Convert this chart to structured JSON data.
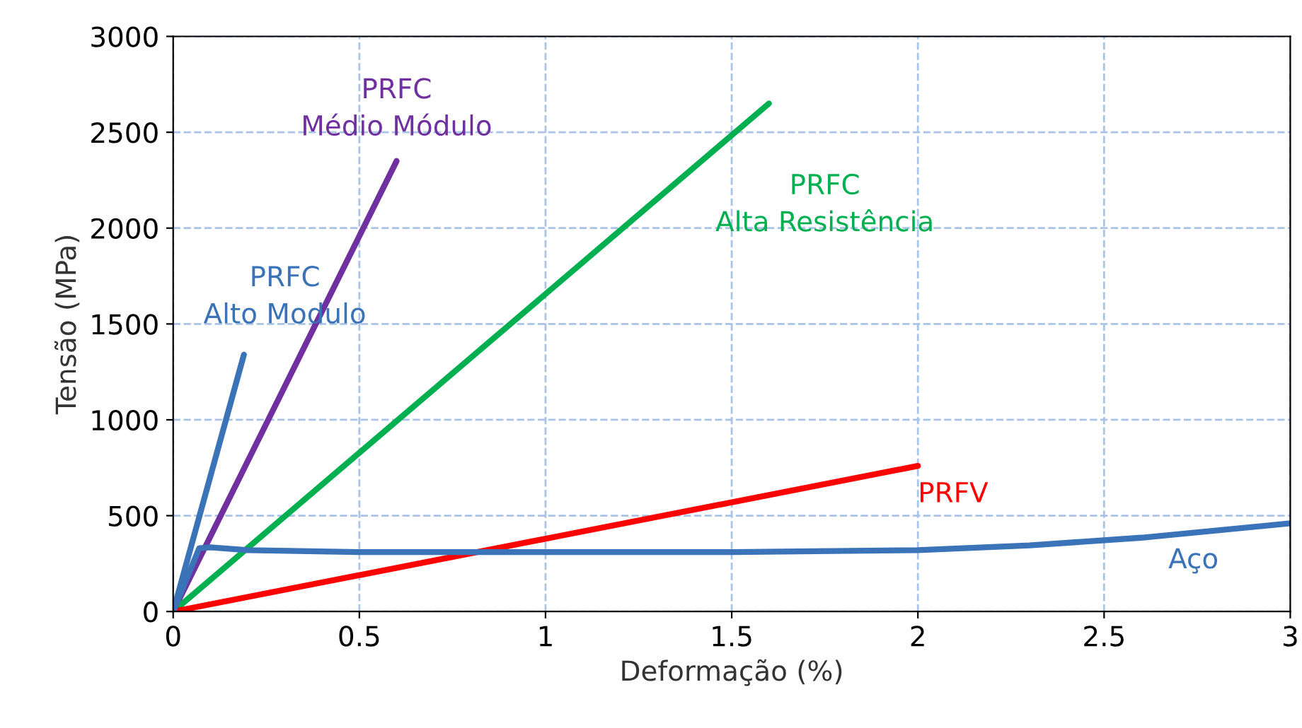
{
  "chart_data": {
    "type": "line",
    "xlabel": "Deformação (%)",
    "ylabel": "Tensão (MPa)",
    "xlim": [
      0,
      3
    ],
    "ylim": [
      0,
      3000
    ],
    "xticks": [
      0,
      0.5,
      1,
      1.5,
      2,
      2.5,
      3
    ],
    "yticks": [
      0,
      500,
      1000,
      1500,
      2000,
      2500,
      3000
    ],
    "grid": true,
    "legend": false,
    "marker": "none",
    "line_style": "solid",
    "series": [
      {
        "name": "PRFC\nAlto Modulo",
        "color": "#3a73b8",
        "x": [
          0,
          0.19
        ],
        "values": [
          0,
          1340
        ]
      },
      {
        "name": "PRFC\nMédio Módulo",
        "color": "#7030a0",
        "x": [
          0,
          0.6
        ],
        "values": [
          0,
          2350
        ]
      },
      {
        "name": "PRFC\nAlta Resistência",
        "color": "#00b050",
        "x": [
          0,
          1.6
        ],
        "values": [
          0,
          2650
        ]
      },
      {
        "name": "PRFV",
        "color": "#ff0000",
        "x": [
          0,
          2.0
        ],
        "values": [
          0,
          760
        ]
      },
      {
        "name": "Aço",
        "color": "#3a73b8",
        "x": [
          0,
          0.07,
          0.1,
          0.2,
          0.5,
          1,
          1.5,
          2,
          2.3,
          2.6,
          3
        ],
        "values": [
          0,
          330,
          335,
          320,
          310,
          310,
          310,
          320,
          345,
          385,
          460
        ]
      }
    ]
  }
}
